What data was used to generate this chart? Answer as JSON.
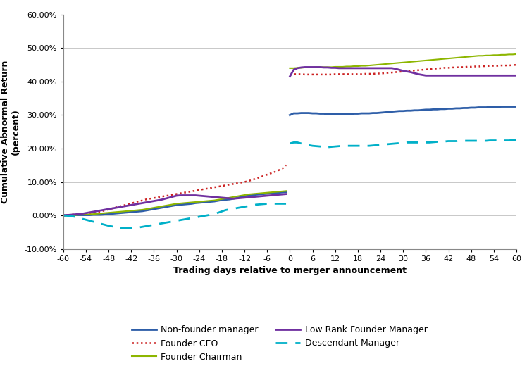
{
  "xlabel": "Trading days relative to merger announcement",
  "ylabel": "Cumulative Abnormal Return\n(percent)",
  "xlim": [
    -60,
    60
  ],
  "ylim": [
    -0.1,
    0.6
  ],
  "yticks": [
    -0.1,
    0.0,
    0.1,
    0.2,
    0.3,
    0.4,
    0.5,
    0.6
  ],
  "ytick_labels": [
    "-10.00%",
    "0.00%",
    "10.00%",
    "20.00%",
    "30.00%",
    "40.00%",
    "50.00%",
    "60.00%"
  ],
  "xticks": [
    -60,
    -54,
    -48,
    -42,
    -36,
    -30,
    -24,
    -18,
    -12,
    -6,
    0,
    6,
    12,
    18,
    24,
    30,
    36,
    42,
    48,
    54,
    60
  ],
  "series": {
    "non_founder": {
      "label": "Non-founder manager",
      "color": "#2E5EA8",
      "linewidth": 2.0,
      "linestyle": "solid",
      "x_pre": [
        -60,
        -59,
        -58,
        -57,
        -56,
        -55,
        -54,
        -53,
        -52,
        -51,
        -50,
        -49,
        -48,
        -47,
        -46,
        -45,
        -44,
        -43,
        -42,
        -41,
        -40,
        -39,
        -38,
        -37,
        -36,
        -35,
        -34,
        -33,
        -32,
        -31,
        -30,
        -29,
        -28,
        -27,
        -26,
        -25,
        -24,
        -23,
        -22,
        -21,
        -20,
        -19,
        -18,
        -17,
        -16,
        -15,
        -14,
        -13,
        -12,
        -11,
        -10,
        -9,
        -8,
        -7,
        -6,
        -5,
        -4,
        -3,
        -2,
        -1
      ],
      "y_pre": [
        0.0,
        0.001,
        0.001,
        0.001,
        0.001,
        0.001,
        0.001,
        0.001,
        0.002,
        0.002,
        0.002,
        0.003,
        0.004,
        0.005,
        0.006,
        0.007,
        0.008,
        0.009,
        0.01,
        0.011,
        0.012,
        0.013,
        0.015,
        0.017,
        0.019,
        0.021,
        0.023,
        0.025,
        0.027,
        0.029,
        0.031,
        0.032,
        0.033,
        0.034,
        0.035,
        0.037,
        0.038,
        0.039,
        0.04,
        0.041,
        0.042,
        0.044,
        0.046,
        0.047,
        0.048,
        0.05,
        0.052,
        0.055,
        0.057,
        0.059,
        0.06,
        0.062,
        0.063,
        0.064,
        0.065,
        0.066,
        0.067,
        0.068,
        0.069,
        0.07
      ],
      "x_post": [
        0,
        1,
        2,
        3,
        4,
        5,
        6,
        7,
        8,
        9,
        10,
        11,
        12,
        13,
        14,
        15,
        16,
        17,
        18,
        19,
        20,
        21,
        22,
        23,
        24,
        25,
        26,
        27,
        28,
        29,
        30,
        31,
        32,
        33,
        34,
        35,
        36,
        37,
        38,
        39,
        40,
        41,
        42,
        43,
        44,
        45,
        46,
        47,
        48,
        49,
        50,
        51,
        52,
        53,
        54,
        55,
        56,
        57,
        58,
        59,
        60
      ],
      "y_post": [
        0.3,
        0.305,
        0.305,
        0.306,
        0.306,
        0.306,
        0.305,
        0.305,
        0.304,
        0.304,
        0.303,
        0.303,
        0.303,
        0.303,
        0.303,
        0.303,
        0.303,
        0.304,
        0.304,
        0.305,
        0.305,
        0.305,
        0.306,
        0.306,
        0.307,
        0.308,
        0.309,
        0.31,
        0.311,
        0.312,
        0.312,
        0.313,
        0.313,
        0.314,
        0.314,
        0.315,
        0.316,
        0.316,
        0.317,
        0.317,
        0.318,
        0.318,
        0.319,
        0.319,
        0.32,
        0.32,
        0.321,
        0.321,
        0.322,
        0.322,
        0.323,
        0.323,
        0.323,
        0.324,
        0.324,
        0.324,
        0.325,
        0.325,
        0.325,
        0.325,
        0.325
      ]
    },
    "founder_ceo": {
      "label": "Founder CEO",
      "color": "#CC2222",
      "linewidth": 1.8,
      "linestyle": "dotted",
      "x_pre": [
        -60,
        -59,
        -58,
        -57,
        -56,
        -55,
        -54,
        -53,
        -52,
        -51,
        -50,
        -49,
        -48,
        -47,
        -46,
        -45,
        -44,
        -43,
        -42,
        -41,
        -40,
        -39,
        -38,
        -37,
        -36,
        -35,
        -34,
        -33,
        -32,
        -31,
        -30,
        -29,
        -28,
        -27,
        -26,
        -25,
        -24,
        -23,
        -22,
        -21,
        -20,
        -19,
        -18,
        -17,
        -16,
        -15,
        -14,
        -13,
        -12,
        -11,
        -10,
        -9,
        -8,
        -7,
        -6,
        -5,
        -4,
        -3,
        -2,
        -1
      ],
      "y_pre": [
        0.0,
        0.001,
        0.002,
        0.003,
        0.004,
        0.005,
        0.006,
        0.007,
        0.008,
        0.01,
        0.012,
        0.015,
        0.018,
        0.021,
        0.024,
        0.027,
        0.03,
        0.033,
        0.036,
        0.039,
        0.042,
        0.045,
        0.048,
        0.05,
        0.052,
        0.054,
        0.056,
        0.058,
        0.06,
        0.062,
        0.064,
        0.066,
        0.068,
        0.07,
        0.072,
        0.074,
        0.076,
        0.078,
        0.08,
        0.082,
        0.084,
        0.086,
        0.088,
        0.09,
        0.092,
        0.094,
        0.096,
        0.098,
        0.1,
        0.103,
        0.106,
        0.11,
        0.114,
        0.118,
        0.122,
        0.126,
        0.13,
        0.135,
        0.14,
        0.15
      ],
      "x_post": [
        0,
        1,
        2,
        3,
        4,
        5,
        6,
        7,
        8,
        9,
        10,
        11,
        12,
        13,
        14,
        15,
        16,
        17,
        18,
        19,
        20,
        21,
        22,
        23,
        24,
        25,
        26,
        27,
        28,
        29,
        30,
        31,
        32,
        33,
        34,
        35,
        36,
        37,
        38,
        39,
        40,
        41,
        42,
        43,
        44,
        45,
        46,
        47,
        48,
        49,
        50,
        51,
        52,
        53,
        54,
        55,
        56,
        57,
        58,
        59,
        60
      ],
      "y_post": [
        0.42,
        0.422,
        0.422,
        0.422,
        0.421,
        0.421,
        0.421,
        0.421,
        0.421,
        0.421,
        0.421,
        0.421,
        0.422,
        0.422,
        0.422,
        0.422,
        0.422,
        0.422,
        0.422,
        0.422,
        0.423,
        0.423,
        0.423,
        0.424,
        0.424,
        0.425,
        0.426,
        0.427,
        0.428,
        0.429,
        0.43,
        0.431,
        0.432,
        0.433,
        0.434,
        0.435,
        0.436,
        0.437,
        0.438,
        0.439,
        0.44,
        0.441,
        0.441,
        0.442,
        0.442,
        0.443,
        0.443,
        0.444,
        0.444,
        0.445,
        0.445,
        0.446,
        0.446,
        0.447,
        0.447,
        0.447,
        0.448,
        0.448,
        0.448,
        0.449,
        0.45
      ]
    },
    "founder_chairman": {
      "label": "Founder Chairman",
      "color": "#8DB600",
      "linewidth": 1.5,
      "linestyle": "solid",
      "x_pre": [
        -60,
        -59,
        -58,
        -57,
        -56,
        -55,
        -54,
        -53,
        -52,
        -51,
        -50,
        -49,
        -48,
        -47,
        -46,
        -45,
        -44,
        -43,
        -42,
        -41,
        -40,
        -39,
        -38,
        -37,
        -36,
        -35,
        -34,
        -33,
        -32,
        -31,
        -30,
        -29,
        -28,
        -27,
        -26,
        -25,
        -24,
        -23,
        -22,
        -21,
        -20,
        -19,
        -18,
        -17,
        -16,
        -15,
        -14,
        -13,
        -12,
        -11,
        -10,
        -9,
        -8,
        -7,
        -6,
        -5,
        -4,
        -3,
        -2,
        -1
      ],
      "y_pre": [
        -0.001,
        0.0,
        0.001,
        0.001,
        0.002,
        0.002,
        0.003,
        0.003,
        0.004,
        0.005,
        0.006,
        0.007,
        0.008,
        0.009,
        0.01,
        0.011,
        0.012,
        0.013,
        0.014,
        0.015,
        0.016,
        0.017,
        0.019,
        0.021,
        0.023,
        0.025,
        0.027,
        0.029,
        0.031,
        0.033,
        0.035,
        0.036,
        0.037,
        0.038,
        0.039,
        0.04,
        0.041,
        0.042,
        0.043,
        0.044,
        0.045,
        0.047,
        0.049,
        0.051,
        0.053,
        0.055,
        0.057,
        0.059,
        0.061,
        0.063,
        0.064,
        0.065,
        0.066,
        0.067,
        0.068,
        0.069,
        0.07,
        0.071,
        0.072,
        0.073
      ],
      "x_post": [
        0,
        1,
        2,
        3,
        4,
        5,
        6,
        7,
        8,
        9,
        10,
        11,
        12,
        13,
        14,
        15,
        16,
        17,
        18,
        19,
        20,
        21,
        22,
        23,
        24,
        25,
        26,
        27,
        28,
        29,
        30,
        31,
        32,
        33,
        34,
        35,
        36,
        37,
        38,
        39,
        40,
        41,
        42,
        43,
        44,
        45,
        46,
        47,
        48,
        49,
        50,
        51,
        52,
        53,
        54,
        55,
        56,
        57,
        58,
        59,
        60
      ],
      "y_post": [
        0.44,
        0.44,
        0.441,
        0.441,
        0.442,
        0.442,
        0.442,
        0.443,
        0.443,
        0.443,
        0.443,
        0.443,
        0.444,
        0.444,
        0.444,
        0.445,
        0.445,
        0.446,
        0.446,
        0.447,
        0.447,
        0.448,
        0.449,
        0.45,
        0.451,
        0.452,
        0.453,
        0.454,
        0.455,
        0.456,
        0.457,
        0.458,
        0.459,
        0.46,
        0.461,
        0.462,
        0.463,
        0.464,
        0.465,
        0.466,
        0.467,
        0.468,
        0.469,
        0.47,
        0.471,
        0.472,
        0.473,
        0.474,
        0.475,
        0.476,
        0.477,
        0.477,
        0.478,
        0.478,
        0.479,
        0.479,
        0.48,
        0.48,
        0.481,
        0.481,
        0.482
      ]
    },
    "low_rank": {
      "label": "Low Rank Founder Manager",
      "color": "#7030A0",
      "linewidth": 2.0,
      "linestyle": "solid",
      "x_pre": [
        -60,
        -59,
        -58,
        -57,
        -56,
        -55,
        -54,
        -53,
        -52,
        -51,
        -50,
        -49,
        -48,
        -47,
        -46,
        -45,
        -44,
        -43,
        -42,
        -41,
        -40,
        -39,
        -38,
        -37,
        -36,
        -35,
        -34,
        -33,
        -32,
        -31,
        -30,
        -29,
        -28,
        -27,
        -26,
        -25,
        -24,
        -23,
        -22,
        -21,
        -20,
        -19,
        -18,
        -17,
        -16,
        -15,
        -14,
        -13,
        -12,
        -11,
        -10,
        -9,
        -8,
        -7,
        -6,
        -5,
        -4,
        -3,
        -2,
        -1
      ],
      "y_pre": [
        0.0,
        0.001,
        0.002,
        0.003,
        0.004,
        0.005,
        0.007,
        0.009,
        0.011,
        0.013,
        0.015,
        0.017,
        0.019,
        0.021,
        0.023,
        0.025,
        0.027,
        0.029,
        0.031,
        0.033,
        0.035,
        0.037,
        0.039,
        0.041,
        0.043,
        0.045,
        0.047,
        0.05,
        0.053,
        0.056,
        0.059,
        0.06,
        0.06,
        0.06,
        0.06,
        0.06,
        0.059,
        0.058,
        0.057,
        0.056,
        0.055,
        0.054,
        0.053,
        0.052,
        0.051,
        0.05,
        0.051,
        0.052,
        0.053,
        0.054,
        0.055,
        0.056,
        0.057,
        0.058,
        0.059,
        0.06,
        0.061,
        0.062,
        0.063,
        0.064
      ],
      "x_post": [
        0,
        1,
        2,
        3,
        4,
        5,
        6,
        7,
        8,
        9,
        10,
        11,
        12,
        13,
        14,
        15,
        16,
        17,
        18,
        19,
        20,
        21,
        22,
        23,
        24,
        25,
        26,
        27,
        28,
        29,
        30,
        31,
        32,
        33,
        34,
        35,
        36,
        37,
        38,
        39,
        40,
        41,
        42,
        43,
        44,
        45,
        46,
        47,
        48,
        49,
        50,
        51,
        52,
        53,
        54,
        55,
        56,
        57,
        58,
        59,
        60
      ],
      "y_post": [
        0.415,
        0.435,
        0.44,
        0.442,
        0.443,
        0.443,
        0.443,
        0.443,
        0.443,
        0.442,
        0.442,
        0.441,
        0.441,
        0.44,
        0.44,
        0.44,
        0.44,
        0.44,
        0.44,
        0.44,
        0.44,
        0.44,
        0.44,
        0.44,
        0.44,
        0.44,
        0.44,
        0.44,
        0.438,
        0.435,
        0.432,
        0.43,
        0.428,
        0.425,
        0.422,
        0.42,
        0.418,
        0.418,
        0.418,
        0.418,
        0.418,
        0.418,
        0.418,
        0.418,
        0.418,
        0.418,
        0.418,
        0.418,
        0.418,
        0.418,
        0.418,
        0.418,
        0.418,
        0.418,
        0.418,
        0.418,
        0.418,
        0.418,
        0.418,
        0.418,
        0.418
      ]
    },
    "descendant": {
      "label": "Descendant Manager",
      "color": "#00B0C8",
      "linewidth": 2.0,
      "linestyle": "dashed",
      "x_pre": [
        -60,
        -59,
        -58,
        -57,
        -56,
        -55,
        -54,
        -53,
        -52,
        -51,
        -50,
        -49,
        -48,
        -47,
        -46,
        -45,
        -44,
        -43,
        -42,
        -41,
        -40,
        -39,
        -38,
        -37,
        -36,
        -35,
        -34,
        -33,
        -32,
        -31,
        -30,
        -29,
        -28,
        -27,
        -26,
        -25,
        -24,
        -23,
        -22,
        -21,
        -20,
        -19,
        -18,
        -17,
        -16,
        -15,
        -14,
        -13,
        -12,
        -11,
        -10,
        -9,
        -8,
        -7,
        -6,
        -5,
        -4,
        -3,
        -2,
        -1
      ],
      "y_pre": [
        0.0,
        -0.001,
        -0.002,
        -0.004,
        -0.007,
        -0.01,
        -0.013,
        -0.016,
        -0.019,
        -0.022,
        -0.025,
        -0.028,
        -0.031,
        -0.033,
        -0.035,
        -0.037,
        -0.038,
        -0.038,
        -0.038,
        -0.037,
        -0.036,
        -0.034,
        -0.032,
        -0.03,
        -0.028,
        -0.026,
        -0.024,
        -0.022,
        -0.02,
        -0.018,
        -0.016,
        -0.014,
        -0.012,
        -0.01,
        -0.008,
        -0.006,
        -0.004,
        -0.002,
        0.0,
        0.002,
        0.004,
        0.008,
        0.012,
        0.016,
        0.018,
        0.02,
        0.022,
        0.024,
        0.026,
        0.028,
        0.03,
        0.032,
        0.033,
        0.034,
        0.035,
        0.035,
        0.035,
        0.035,
        0.035,
        0.035
      ],
      "x_post": [
        0,
        1,
        2,
        3,
        4,
        5,
        6,
        7,
        8,
        9,
        10,
        11,
        12,
        13,
        14,
        15,
        16,
        17,
        18,
        19,
        20,
        21,
        22,
        23,
        24,
        25,
        26,
        27,
        28,
        29,
        30,
        31,
        32,
        33,
        34,
        35,
        36,
        37,
        38,
        39,
        40,
        41,
        42,
        43,
        44,
        45,
        46,
        47,
        48,
        49,
        50,
        51,
        52,
        53,
        54,
        55,
        56,
        57,
        58,
        59,
        60
      ],
      "y_post": [
        0.215,
        0.218,
        0.218,
        0.215,
        0.212,
        0.21,
        0.208,
        0.207,
        0.206,
        0.205,
        0.204,
        0.205,
        0.206,
        0.207,
        0.208,
        0.208,
        0.208,
        0.208,
        0.208,
        0.208,
        0.208,
        0.208,
        0.209,
        0.21,
        0.211,
        0.212,
        0.213,
        0.214,
        0.215,
        0.216,
        0.217,
        0.218,
        0.218,
        0.218,
        0.218,
        0.218,
        0.218,
        0.218,
        0.219,
        0.22,
        0.22,
        0.221,
        0.222,
        0.222,
        0.222,
        0.223,
        0.223,
        0.223,
        0.223,
        0.223,
        0.223,
        0.223,
        0.223,
        0.224,
        0.224,
        0.224,
        0.224,
        0.224,
        0.224,
        0.225,
        0.225
      ]
    }
  },
  "legend_order": [
    "non_founder",
    "founder_ceo",
    "founder_chairman",
    "low_rank",
    "descendant"
  ],
  "background_color": "#FFFFFF",
  "grid_color": "#C8C8C8"
}
